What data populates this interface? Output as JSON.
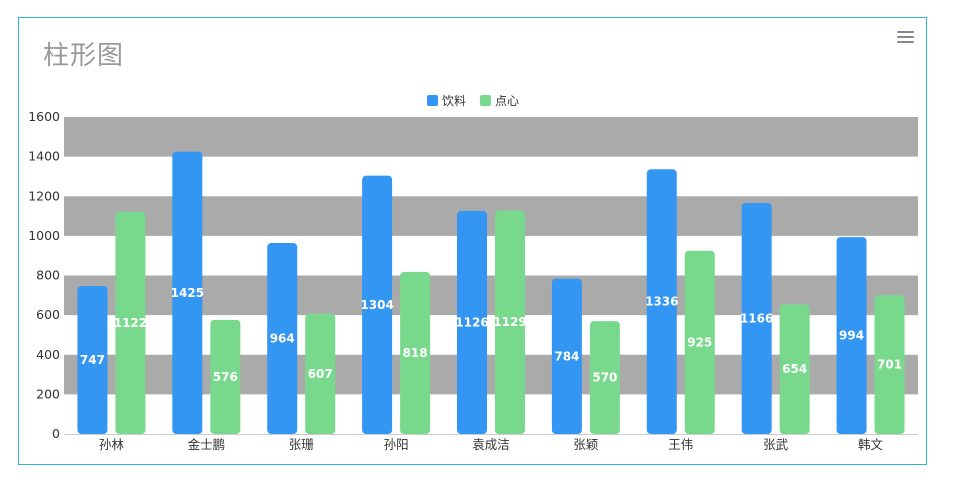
{
  "title": "柱形图",
  "menu_icon": "hamburger-menu-icon",
  "colors": {
    "series1": "#3396f3",
    "series2": "#78d98c",
    "band": "#aaaaaa",
    "axis_text": "#333333",
    "label": "#ffffff"
  },
  "chart_data": {
    "type": "bar",
    "title": "柱形图",
    "categories": [
      "孙林",
      "金士鹏",
      "张珊",
      "孙阳",
      "袁成洁",
      "张颖",
      "王伟",
      "张武",
      "韩文"
    ],
    "series": [
      {
        "name": "饮料",
        "values": [
          747,
          1425,
          964,
          1304,
          1126,
          784,
          1336,
          1166,
          994
        ]
      },
      {
        "name": "点心",
        "values": [
          1122,
          576,
          607,
          818,
          1129,
          570,
          925,
          654,
          701
        ]
      }
    ],
    "ylim": [
      0,
      1600
    ],
    "yticks": [
      0,
      200,
      400,
      600,
      800,
      1000,
      1200,
      1400,
      1600
    ],
    "legend_position": "top-center",
    "grid": "alternating horizontal bands",
    "data_labels": true
  }
}
